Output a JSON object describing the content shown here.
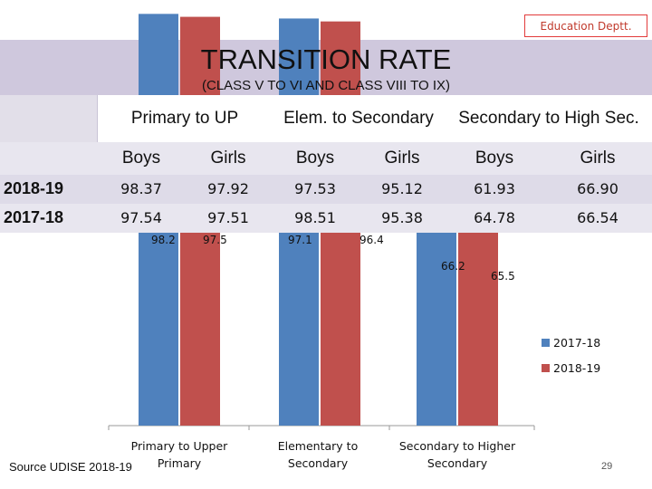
{
  "header": {
    "badge": "Education  Deptt.",
    "title": "TRANSITION RATE",
    "subtitle": "(CLASS V TO VI AND CLASS VIII TO IX)"
  },
  "table": {
    "groups": [
      "Primary to UP",
      "Elem. to Secondary",
      "Secondary to High Sec."
    ],
    "subheaders": [
      "Boys",
      "Girls",
      "Boys",
      "Girls",
      "Boys",
      "Girls"
    ],
    "rows": [
      {
        "year": "2018-19",
        "values": [
          "98.37",
          "97.92",
          "97.53",
          "95.12",
          "61.93",
          "66.90"
        ]
      },
      {
        "year": "2017-18",
        "values": [
          "97.54",
          "97.51",
          "98.51",
          "95.38",
          "64.78",
          "66.54"
        ]
      }
    ]
  },
  "chart_data": {
    "type": "bar",
    "categories": [
      "Primary to Upper Primary",
      "Elementary to Secondary",
      "Secondary to Higher Secondary"
    ],
    "series": [
      {
        "name": "2017-18",
        "color": "#4f81bd",
        "values": [
          98.2,
          97.1,
          66.2
        ]
      },
      {
        "name": "2018-19",
        "color": "#c0504d",
        "values": [
          97.5,
          96.4,
          65.5
        ]
      }
    ],
    "data_labels": [
      [
        "98.2",
        "97.1",
        "66.2"
      ],
      [
        "97.5",
        "96.4",
        "65.5"
      ]
    ],
    "category_labels": [
      [
        "Primary to Upper",
        "Primary"
      ],
      [
        "Elementary to",
        "Secondary"
      ],
      [
        "Secondary to Higher",
        "Secondary"
      ]
    ],
    "legend": [
      "2017-18",
      "2018-19"
    ],
    "legend_position": "right",
    "ylim": [
      0,
      100
    ]
  },
  "footer": {
    "source": "Source UDISE 2018-19",
    "page_number": "29"
  }
}
